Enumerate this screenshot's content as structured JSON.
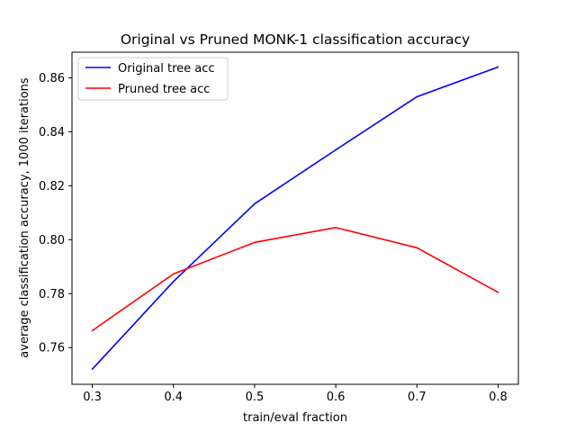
{
  "chart_data": {
    "type": "line",
    "title": "Original vs Pruned MONK-1 classification accuracy",
    "xlabel": "train/eval fraction",
    "ylabel": "average classification accuracy, 1000 iterations",
    "x": [
      0.3,
      0.4,
      0.5,
      0.6,
      0.7,
      0.8
    ],
    "x_ticks": [
      "0.3",
      "0.4",
      "0.5",
      "0.6",
      "0.7",
      "0.8"
    ],
    "y_ticks": [
      "0.76",
      "0.78",
      "0.80",
      "0.82",
      "0.84",
      "0.86"
    ],
    "xlim": [
      0.275,
      0.825
    ],
    "ylim": [
      0.7464,
      0.8695
    ],
    "grid": false,
    "legend_position": "top-left",
    "series": [
      {
        "name": "Original tree acc",
        "color": "#0000ff",
        "values": [
          0.752,
          0.7845,
          0.8133,
          0.8333,
          0.853,
          0.864
        ]
      },
      {
        "name": "Pruned tree acc",
        "color": "#ff0000",
        "values": [
          0.7663,
          0.7873,
          0.799,
          0.8045,
          0.797,
          0.7805
        ]
      }
    ]
  }
}
